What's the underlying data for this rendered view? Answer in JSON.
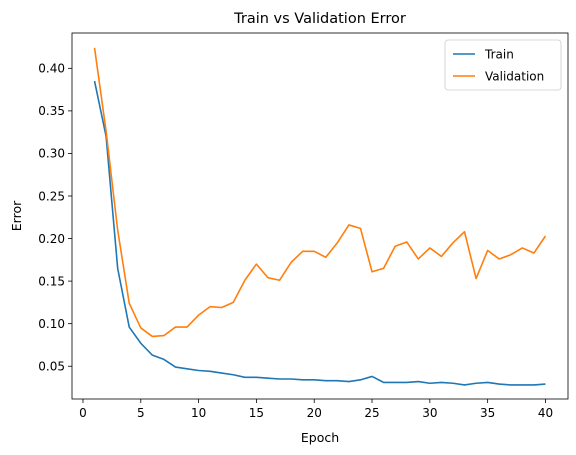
{
  "chart_data": {
    "type": "line",
    "title": "Train vs Validation Error",
    "xlabel": "Epoch",
    "ylabel": "Error",
    "xlim": [
      -0.95,
      41.95
    ],
    "ylim": [
      0.0115,
      0.4415
    ],
    "xticks": [
      0,
      5,
      10,
      15,
      20,
      25,
      30,
      35,
      40
    ],
    "yticks": [
      0.05,
      0.1,
      0.15,
      0.2,
      0.25,
      0.3,
      0.35,
      0.4
    ],
    "ytick_labels": [
      "0.05",
      "0.10",
      "0.15",
      "0.20",
      "0.25",
      "0.30",
      "0.35",
      "0.40"
    ],
    "grid": false,
    "legend": "top-right",
    "x": [
      1,
      2,
      3,
      4,
      5,
      6,
      7,
      8,
      9,
      10,
      11,
      12,
      13,
      14,
      15,
      16,
      17,
      18,
      19,
      20,
      21,
      22,
      23,
      24,
      25,
      26,
      27,
      28,
      29,
      30,
      31,
      32,
      33,
      34,
      35,
      36,
      37,
      38,
      39,
      40
    ],
    "series": [
      {
        "name": "Train",
        "color": "#1f77b4",
        "values": [
          0.385,
          0.32,
          0.165,
          0.096,
          0.077,
          0.063,
          0.058,
          0.049,
          0.047,
          0.045,
          0.044,
          0.042,
          0.04,
          0.037,
          0.037,
          0.036,
          0.035,
          0.035,
          0.034,
          0.034,
          0.033,
          0.033,
          0.032,
          0.034,
          0.038,
          0.031,
          0.031,
          0.031,
          0.032,
          0.03,
          0.031,
          0.03,
          0.028,
          0.03,
          0.031,
          0.029,
          0.028,
          0.028,
          0.028,
          0.029
        ]
      },
      {
        "name": "Validation",
        "color": "#ff7f0e",
        "values": [
          0.424,
          0.326,
          0.21,
          0.124,
          0.095,
          0.085,
          0.086,
          0.096,
          0.096,
          0.11,
          0.12,
          0.119,
          0.125,
          0.151,
          0.17,
          0.154,
          0.151,
          0.172,
          0.185,
          0.185,
          0.178,
          0.195,
          0.216,
          0.212,
          0.161,
          0.165,
          0.191,
          0.196,
          0.176,
          0.189,
          0.179,
          0.195,
          0.208,
          0.153,
          0.186,
          0.176,
          0.181,
          0.189,
          0.183,
          0.203
        ]
      }
    ]
  }
}
